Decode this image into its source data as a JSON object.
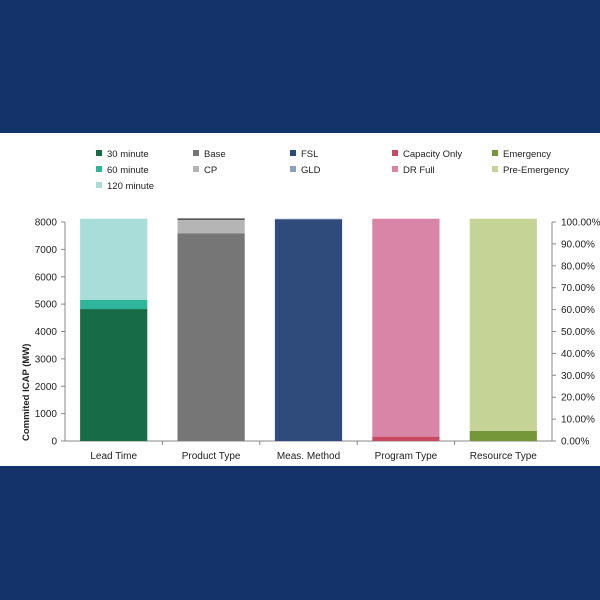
{
  "chart_data": {
    "type": "bar",
    "stacked": true,
    "title": "",
    "xlabel": "",
    "ylabel": "Commited ICAP (MW)",
    "ylim": [
      0,
      8000
    ],
    "yticks": [
      "0",
      "1000",
      "2000",
      "3000",
      "4000",
      "5000",
      "6000",
      "7000",
      "8000"
    ],
    "y2lim": [
      0,
      100
    ],
    "y2ticks": [
      "0.00%",
      "10.00%",
      "20.00%",
      "30.00%",
      "40.00%",
      "50.00%",
      "60.00%",
      "70.00%",
      "80.00%",
      "90.00%",
      "100.00%"
    ],
    "legend_position": "top",
    "categories": [
      "Lead Time",
      "Product Type",
      "Meas. Method",
      "Program Type",
      "Resource Type"
    ],
    "stacks": [
      {
        "category": "Lead Time",
        "segments": [
          {
            "name": "30 minute",
            "value": 4820,
            "color": "#176b47"
          },
          {
            "name": "60 minute",
            "value": 340,
            "color": "#2fb59a"
          },
          {
            "name": "120 minute",
            "value": 2960,
            "color": "#a9ddd9"
          }
        ]
      },
      {
        "category": "Product Type",
        "segments": [
          {
            "name": "Base",
            "value": 7580,
            "color": "#767676"
          },
          {
            "name": "CP",
            "value": 500,
            "color": "#b5b5b5"
          },
          {
            "name": "",
            "value": 50,
            "color": "#3a3a3a"
          }
        ]
      },
      {
        "category": "Meas. Method",
        "segments": [
          {
            "name": "FSL",
            "value": 8100,
            "color": "#2e4b7b"
          },
          {
            "name": "GLD",
            "value": 20,
            "color": "#8d9fc3"
          }
        ]
      },
      {
        "category": "Program Type",
        "segments": [
          {
            "name": "Capacity Only",
            "value": 160,
            "color": "#c74a62"
          },
          {
            "name": "DR Full",
            "value": 7960,
            "color": "#d985a7"
          }
        ]
      },
      {
        "category": "Resource Type",
        "segments": [
          {
            "name": "Emergency",
            "value": 370,
            "color": "#76963a"
          },
          {
            "name": "Pre-Emergency",
            "value": 7750,
            "color": "#c5d396"
          }
        ]
      }
    ],
    "legend": [
      {
        "label": "30 minute",
        "color": "#176b47"
      },
      {
        "label": "60 minute",
        "color": "#2fb59a"
      },
      {
        "label": "120 minute",
        "color": "#a9ddd9"
      },
      {
        "label": "Base",
        "color": "#767676"
      },
      {
        "label": "CP",
        "color": "#b5b5b5"
      },
      {
        "label": "FSL",
        "color": "#2e4b7b"
      },
      {
        "label": "GLD",
        "color": "#8d9fc3"
      },
      {
        "label": "Capacity Only",
        "color": "#c74a62"
      },
      {
        "label": "DR Full",
        "color": "#d985a7"
      },
      {
        "label": "Emergency",
        "color": "#76963a"
      },
      {
        "label": "Pre-Emergency",
        "color": "#c5d396"
      }
    ]
  }
}
